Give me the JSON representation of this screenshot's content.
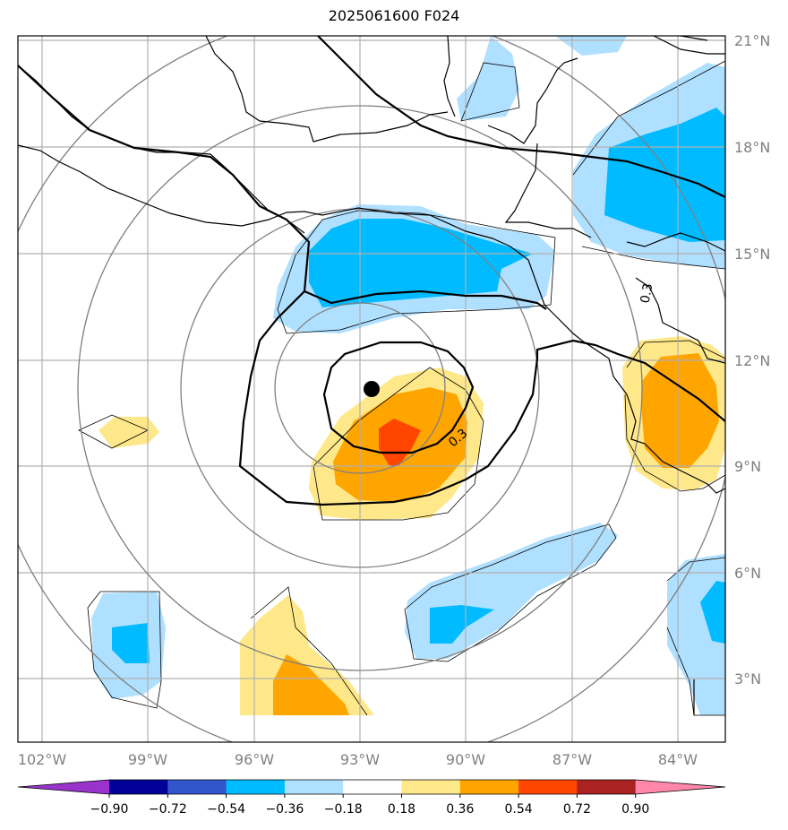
{
  "title": "2025061600 F024",
  "lon_labels": [
    "102°W",
    "99°W",
    "96°W",
    "93°W",
    "90°W",
    "87°W",
    "84°W"
  ],
  "lat_labels": [
    "21°N",
    "18°N",
    "15°N",
    "12°N",
    "9°N",
    "6°N",
    "3°N"
  ],
  "contour_labels": [
    "0.3",
    "0.3"
  ],
  "colorbar": {
    "tick_labels": [
      "−0.90",
      "−0.72",
      "−0.54",
      "−0.36",
      "−0.18",
      "0.18",
      "0.36",
      "0.54",
      "0.72",
      "0.90"
    ],
    "colors": [
      "#9933cc",
      "#000099",
      "#3355cc",
      "#00bbff",
      "#b0e0ff",
      "#ffffff",
      "#ffe88a",
      "#ffa500",
      "#ff4500",
      "#aa2222",
      "#ff88aa"
    ]
  },
  "marker": "storm-center"
}
